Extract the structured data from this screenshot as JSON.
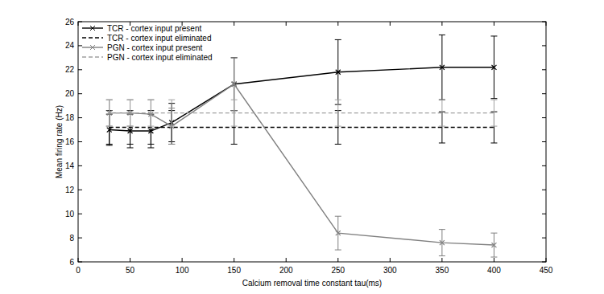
{
  "chart_data": {
    "type": "line",
    "x_label": "Calcium removal time constant tau(ms)",
    "y_label": "Mean firing rate (Hz)",
    "x": [
      30,
      50,
      70,
      90,
      150,
      250,
      350,
      400
    ],
    "xlim": [
      0,
      450
    ],
    "xticks": [
      0,
      50,
      100,
      150,
      200,
      250,
      300,
      350,
      400,
      450
    ],
    "ylim": [
      6,
      26
    ],
    "yticks": [
      6,
      8,
      10,
      12,
      14,
      16,
      18,
      20,
      22,
      24,
      26
    ],
    "legend": "upper left",
    "grid": false,
    "series": [
      {
        "name": "TCR - cortex input present",
        "color": "#000000",
        "line_style": "solid",
        "marker": "x",
        "values": [
          17.0,
          16.9,
          16.9,
          17.6,
          20.8,
          21.8,
          22.2,
          22.2
        ],
        "errors": [
          1.3,
          1.4,
          1.4,
          1.6,
          2.2,
          2.7,
          2.7,
          2.6
        ]
      },
      {
        "name": "TCR - cortex input eliminated",
        "color": "#000000",
        "line_style": "dashed",
        "marker": "none",
        "values": [
          17.2,
          17.2,
          17.2,
          17.2,
          17.2,
          17.2,
          17.2,
          17.2
        ],
        "errors": [
          1.4,
          1.4,
          1.4,
          1.4,
          1.4,
          1.4,
          1.3,
          1.3
        ]
      },
      {
        "name": "PGN - cortex input present",
        "color": "#808080",
        "line_style": "solid",
        "marker": "x",
        "values": [
          18.4,
          18.4,
          18.3,
          17.3,
          20.8,
          8.4,
          7.6,
          7.4
        ],
        "errors": [
          1.1,
          1.1,
          1.2,
          1.5,
          2.2,
          1.4,
          1.1,
          1.0
        ]
      },
      {
        "name": "PGN - cortex input eliminated",
        "color": "#a0a0a0",
        "line_style": "dashed",
        "marker": "none",
        "values": [
          18.4,
          18.4,
          18.4,
          18.4,
          18.4,
          18.4,
          18.4,
          18.4
        ],
        "errors": [
          1.1,
          1.1,
          1.1,
          1.1,
          1.1,
          1.1,
          1.1,
          1.1
        ]
      }
    ]
  }
}
